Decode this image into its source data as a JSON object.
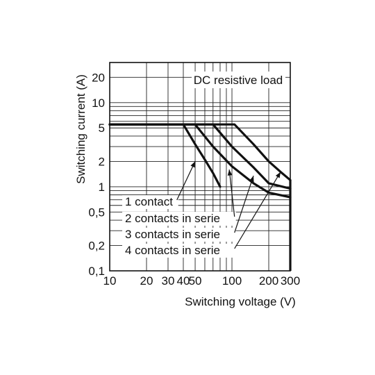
{
  "chart_data": {
    "type": "line",
    "title": "",
    "annotation": "DC resistive load",
    "xlabel": "Switching voltage (V)",
    "ylabel": "Switching current (A)",
    "x_scale": "log",
    "y_scale": "log",
    "xlim": [
      10,
      300
    ],
    "ylim": [
      0.1,
      30
    ],
    "x_ticks": [
      {
        "value": 10,
        "label": "10"
      },
      {
        "value": 20,
        "label": "20"
      },
      {
        "value": 30,
        "label": "30"
      },
      {
        "value": 40,
        "label": "40"
      },
      {
        "value": 50,
        "label": "50"
      },
      {
        "value": 100,
        "label": "100"
      },
      {
        "value": 200,
        "label": "200"
      },
      {
        "value": 300,
        "label": "300"
      }
    ],
    "y_ticks": [
      {
        "value": 0.1,
        "label": "0,1"
      },
      {
        "value": 0.2,
        "label": "0,2"
      },
      {
        "value": 0.5,
        "label": "0,5"
      },
      {
        "value": 1,
        "label": "1"
      },
      {
        "value": 2,
        "label": "2"
      },
      {
        "value": 5,
        "label": "5"
      },
      {
        "value": 10,
        "label": "10"
      },
      {
        "value": 20,
        "label": "20"
      }
    ],
    "x_grid": [
      10,
      20,
      30,
      40,
      50,
      60,
      70,
      80,
      90,
      100,
      200,
      300
    ],
    "y_grid": [
      0.1,
      0.2,
      0.3,
      0.4,
      0.5,
      0.6,
      0.7,
      0.8,
      0.9,
      1,
      2,
      3,
      4,
      5,
      6,
      7,
      8,
      9,
      10,
      20
    ],
    "grid": true,
    "legend": "inline labels with arrows",
    "series": [
      {
        "name": "1 contact",
        "points": [
          [
            10,
            5.5
          ],
          [
            40,
            5.5
          ],
          [
            50,
            3.2
          ],
          [
            60,
            2.1
          ],
          [
            70,
            1.45
          ],
          [
            80,
            1.0
          ]
        ]
      },
      {
        "name": "2 contacts in serie",
        "points": [
          [
            10,
            5.5
          ],
          [
            50,
            5.5
          ],
          [
            70,
            3.0
          ],
          [
            100,
            1.75
          ],
          [
            150,
            1.1
          ],
          [
            200,
            0.85
          ],
          [
            300,
            0.75
          ]
        ]
      },
      {
        "name": "3 contacts in serie",
        "points": [
          [
            10,
            5.5
          ],
          [
            70,
            5.5
          ],
          [
            100,
            3.0
          ],
          [
            150,
            1.7
          ],
          [
            200,
            1.1
          ],
          [
            300,
            0.95
          ]
        ]
      },
      {
        "name": "4 contacts in serie",
        "points": [
          [
            10,
            5.5
          ],
          [
            105,
            5.5
          ],
          [
            150,
            3.2
          ],
          [
            200,
            2.0
          ],
          [
            250,
            1.5
          ],
          [
            300,
            1.2
          ]
        ]
      }
    ],
    "cutoff": {
      "x": 300,
      "ymin": 0.1,
      "ymax": 1.2
    }
  }
}
